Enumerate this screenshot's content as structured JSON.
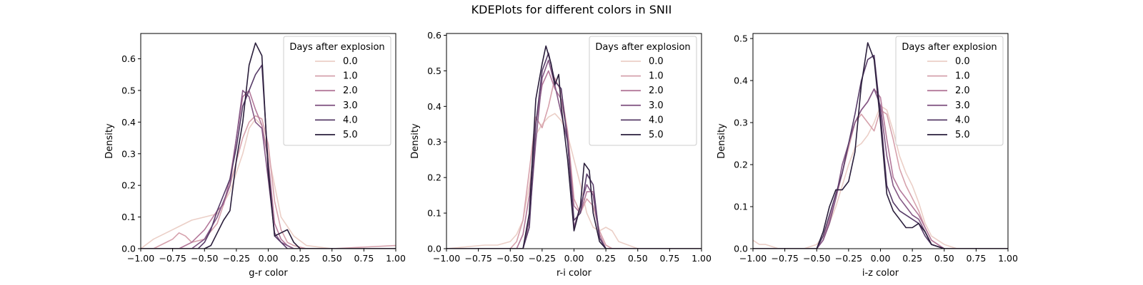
{
  "figure": {
    "title": "KDEPlots for different colors in SNII"
  },
  "palette": [
    "#ebcfc7",
    "#d6a1ac",
    "#b3789a",
    "#845885",
    "#573c68",
    "#2a1e3b"
  ],
  "chart_data": [
    {
      "type": "line",
      "xlabel": "g-r color",
      "ylabel": "Density",
      "xlim": [
        -1.0,
        1.0
      ],
      "ylim": [
        0,
        0.68
      ],
      "xticks": [
        -1.0,
        -0.75,
        -0.5,
        -0.25,
        0.0,
        0.25,
        0.5,
        0.75,
        1.0
      ],
      "xtick_labels": [
        "−1.00",
        "−0.75",
        "−0.50",
        "−0.25",
        "0.00",
        "0.25",
        "0.50",
        "0.75",
        "1.00"
      ],
      "yticks": [
        0.0,
        0.1,
        0.2,
        0.3,
        0.4,
        0.5,
        0.6
      ],
      "ytick_labels": [
        "0.0",
        "0.1",
        "0.2",
        "0.3",
        "0.4",
        "0.5",
        "0.6"
      ],
      "grid": false,
      "legend": {
        "title": "Days after explosion",
        "placement": "top-right"
      },
      "series": [
        {
          "name": "0.0",
          "x": [
            -1.0,
            -0.9,
            -0.8,
            -0.7,
            -0.6,
            -0.5,
            -0.4,
            -0.3,
            -0.2,
            -0.15,
            -0.1,
            -0.05,
            0.0,
            0.05,
            0.1,
            0.2,
            0.3,
            0.5,
            0.7,
            1.0
          ],
          "y": [
            0.0,
            0.03,
            0.05,
            0.07,
            0.09,
            0.1,
            0.11,
            0.18,
            0.3,
            0.38,
            0.41,
            0.39,
            0.3,
            0.2,
            0.1,
            0.04,
            0.01,
            0.0,
            0.0,
            0.0
          ]
        },
        {
          "name": "1.0",
          "x": [
            -1.0,
            -0.9,
            -0.8,
            -0.75,
            -0.7,
            -0.65,
            -0.6,
            -0.5,
            -0.4,
            -0.3,
            -0.2,
            -0.15,
            -0.1,
            -0.05,
            0.0,
            0.05,
            0.1,
            0.15,
            0.2,
            0.3,
            0.5,
            1.0
          ],
          "y": [
            0.0,
            0.0,
            0.02,
            0.03,
            0.05,
            0.04,
            0.02,
            0.03,
            0.08,
            0.2,
            0.35,
            0.4,
            0.42,
            0.41,
            0.33,
            0.15,
            0.06,
            0.02,
            0.01,
            0.0,
            0.0,
            0.01
          ]
        },
        {
          "name": "2.0",
          "x": [
            -1.0,
            -0.7,
            -0.6,
            -0.5,
            -0.4,
            -0.35,
            -0.3,
            -0.25,
            -0.2,
            -0.15,
            -0.1,
            -0.05,
            0.0,
            0.05,
            0.1,
            0.15,
            0.2,
            0.3,
            1.0
          ],
          "y": [
            0.0,
            0.0,
            0.02,
            0.06,
            0.12,
            0.14,
            0.22,
            0.35,
            0.48,
            0.5,
            0.44,
            0.39,
            0.28,
            0.08,
            0.03,
            0.01,
            0.0,
            0.0,
            0.0
          ]
        },
        {
          "name": "3.0",
          "x": [
            -1.0,
            -0.6,
            -0.5,
            -0.4,
            -0.35,
            -0.3,
            -0.25,
            -0.2,
            -0.15,
            -0.1,
            -0.05,
            0.0,
            0.05,
            0.1,
            0.15,
            0.2,
            1.0
          ],
          "y": [
            0.0,
            0.0,
            0.03,
            0.1,
            0.15,
            0.2,
            0.35,
            0.5,
            0.48,
            0.4,
            0.38,
            0.22,
            0.05,
            0.02,
            0.01,
            0.0,
            0.0
          ]
        },
        {
          "name": "4.0",
          "x": [
            -1.0,
            -0.55,
            -0.5,
            -0.45,
            -0.4,
            -0.35,
            -0.3,
            -0.25,
            -0.2,
            -0.15,
            -0.1,
            -0.05,
            0.0,
            0.05,
            0.1,
            0.15,
            1.0
          ],
          "y": [
            0.0,
            0.0,
            0.02,
            0.06,
            0.12,
            0.17,
            0.22,
            0.32,
            0.45,
            0.5,
            0.55,
            0.58,
            0.26,
            0.04,
            0.02,
            0.0,
            0.0
          ]
        },
        {
          "name": "5.0",
          "x": [
            -1.0,
            -0.5,
            -0.45,
            -0.4,
            -0.35,
            -0.3,
            -0.25,
            -0.2,
            -0.15,
            -0.1,
            -0.05,
            0.0,
            0.05,
            0.1,
            0.15,
            0.2,
            0.25,
            1.0
          ],
          "y": [
            0.0,
            0.0,
            0.01,
            0.05,
            0.09,
            0.12,
            0.28,
            0.4,
            0.58,
            0.65,
            0.61,
            0.24,
            0.04,
            0.05,
            0.06,
            0.02,
            0.0,
            0.0
          ]
        }
      ]
    },
    {
      "type": "line",
      "xlabel": "r-i color",
      "ylabel": "Density",
      "xlim": [
        -1.0,
        1.0
      ],
      "ylim": [
        0,
        0.605
      ],
      "xticks": [
        -1.0,
        -0.75,
        -0.5,
        -0.25,
        0.0,
        0.25,
        0.5,
        0.75,
        1.0
      ],
      "xtick_labels": [
        "−1.00",
        "−0.75",
        "−0.50",
        "−0.25",
        "0.00",
        "0.25",
        "0.50",
        "0.75",
        "1.00"
      ],
      "yticks": [
        0.0,
        0.1,
        0.2,
        0.3,
        0.4,
        0.5,
        0.6
      ],
      "ytick_labels": [
        "0.0",
        "0.1",
        "0.2",
        "0.3",
        "0.4",
        "0.5",
        "0.6"
      ],
      "grid": false,
      "legend": {
        "title": "Days after explosion",
        "placement": "top-right"
      },
      "series": [
        {
          "name": "0.0",
          "x": [
            -1.0,
            -0.7,
            -0.6,
            -0.5,
            -0.45,
            -0.4,
            -0.35,
            -0.3,
            -0.25,
            -0.2,
            -0.15,
            -0.1,
            -0.05,
            0.0,
            0.05,
            0.1,
            0.15,
            0.2,
            0.25,
            0.3,
            0.35,
            0.5,
            1.0
          ],
          "y": [
            0.0,
            0.01,
            0.01,
            0.02,
            0.04,
            0.08,
            0.18,
            0.32,
            0.35,
            0.37,
            0.38,
            0.36,
            0.32,
            0.25,
            0.18,
            0.1,
            0.06,
            0.05,
            0.06,
            0.05,
            0.02,
            0.0,
            0.0
          ]
        },
        {
          "name": "1.0",
          "x": [
            -1.0,
            -0.5,
            -0.45,
            -0.4,
            -0.35,
            -0.3,
            -0.25,
            -0.2,
            -0.15,
            -0.1,
            -0.05,
            0.0,
            0.05,
            0.1,
            0.15,
            0.2,
            0.25,
            0.3,
            1.0
          ],
          "y": [
            0.0,
            0.0,
            0.02,
            0.08,
            0.22,
            0.37,
            0.34,
            0.4,
            0.48,
            0.44,
            0.33,
            0.14,
            0.1,
            0.14,
            0.12,
            0.05,
            0.01,
            0.0,
            0.0
          ]
        },
        {
          "name": "2.0",
          "x": [
            -1.0,
            -0.45,
            -0.4,
            -0.35,
            -0.3,
            -0.25,
            -0.2,
            -0.15,
            -0.1,
            -0.05,
            0.0,
            0.05,
            0.1,
            0.15,
            0.2,
            0.25,
            1.0
          ],
          "y": [
            0.0,
            0.0,
            0.04,
            0.15,
            0.35,
            0.46,
            0.5,
            0.45,
            0.42,
            0.32,
            0.12,
            0.1,
            0.16,
            0.16,
            0.04,
            0.0,
            0.0
          ]
        },
        {
          "name": "3.0",
          "x": [
            -1.0,
            -0.4,
            -0.35,
            -0.3,
            -0.25,
            -0.2,
            -0.15,
            -0.1,
            -0.05,
            0.0,
            0.05,
            0.1,
            0.15,
            0.2,
            0.25,
            1.0
          ],
          "y": [
            0.0,
            0.0,
            0.08,
            0.3,
            0.48,
            0.53,
            0.46,
            0.38,
            0.3,
            0.06,
            0.12,
            0.18,
            0.15,
            0.03,
            0.0,
            0.0
          ]
        },
        {
          "name": "4.0",
          "x": [
            -1.0,
            -0.4,
            -0.35,
            -0.3,
            -0.25,
            -0.2,
            -0.15,
            -0.1,
            -0.05,
            0.0,
            0.05,
            0.1,
            0.15,
            0.2,
            0.25,
            1.0
          ],
          "y": [
            0.0,
            0.0,
            0.06,
            0.35,
            0.5,
            0.55,
            0.47,
            0.45,
            0.3,
            0.08,
            0.1,
            0.21,
            0.18,
            0.03,
            0.0,
            0.0
          ]
        },
        {
          "name": "5.0",
          "x": [
            -1.0,
            -0.4,
            -0.35,
            -0.3,
            -0.25,
            -0.22,
            -0.18,
            -0.15,
            -0.12,
            -0.1,
            -0.05,
            0.0,
            0.05,
            0.08,
            0.12,
            0.15,
            0.2,
            0.25,
            1.0
          ],
          "y": [
            0.0,
            0.0,
            0.1,
            0.42,
            0.52,
            0.57,
            0.52,
            0.46,
            0.49,
            0.4,
            0.25,
            0.05,
            0.12,
            0.24,
            0.22,
            0.1,
            0.02,
            0.0,
            0.0
          ]
        }
      ]
    },
    {
      "type": "line",
      "xlabel": "i-z color",
      "ylabel": "Density",
      "xlim": [
        -1.0,
        1.0
      ],
      "ylim": [
        0,
        0.512
      ],
      "xticks": [
        -1.0,
        -0.75,
        -0.5,
        -0.25,
        0.0,
        0.25,
        0.5,
        0.75,
        1.0
      ],
      "xtick_labels": [
        "−1.00",
        "−0.75",
        "−0.50",
        "−0.25",
        "0.00",
        "0.25",
        "0.50",
        "0.75",
        "1.00"
      ],
      "yticks": [
        0.0,
        0.1,
        0.2,
        0.3,
        0.4,
        0.5
      ],
      "ytick_labels": [
        "0.0",
        "0.1",
        "0.2",
        "0.3",
        "0.4",
        "0.5"
      ],
      "grid": false,
      "legend": {
        "title": "Days after explosion",
        "placement": "top-right"
      },
      "series": [
        {
          "name": "0.0",
          "x": [
            -1.0,
            -0.95,
            -0.9,
            -0.8,
            -0.7,
            -0.6,
            -0.5,
            -0.45,
            -0.4,
            -0.35,
            -0.3,
            -0.25,
            -0.2,
            -0.15,
            -0.1,
            -0.05,
            0.0,
            0.05,
            0.1,
            0.15,
            0.2,
            0.25,
            0.3,
            0.35,
            0.4,
            0.5,
            0.6,
            1.0
          ],
          "y": [
            0.02,
            0.01,
            0.01,
            0.0,
            0.0,
            0.0,
            0.01,
            0.03,
            0.06,
            0.1,
            0.15,
            0.2,
            0.24,
            0.25,
            0.27,
            0.3,
            0.34,
            0.33,
            0.28,
            0.22,
            0.18,
            0.15,
            0.11,
            0.06,
            0.03,
            0.01,
            0.0,
            0.0
          ]
        },
        {
          "name": "1.0",
          "x": [
            -1.0,
            -0.5,
            -0.45,
            -0.4,
            -0.35,
            -0.3,
            -0.25,
            -0.2,
            -0.15,
            -0.1,
            -0.05,
            0.0,
            0.05,
            0.1,
            0.15,
            0.2,
            0.25,
            0.3,
            0.35,
            0.4,
            0.5,
            1.0
          ],
          "y": [
            0.0,
            0.0,
            0.02,
            0.06,
            0.12,
            0.18,
            0.24,
            0.3,
            0.32,
            0.3,
            0.28,
            0.33,
            0.32,
            0.26,
            0.19,
            0.15,
            0.12,
            0.09,
            0.05,
            0.02,
            0.0,
            0.0
          ]
        },
        {
          "name": "2.0",
          "x": [
            -1.0,
            -0.5,
            -0.45,
            -0.4,
            -0.35,
            -0.3,
            -0.25,
            -0.2,
            -0.15,
            -0.1,
            -0.05,
            0.0,
            0.05,
            0.1,
            0.15,
            0.2,
            0.25,
            0.3,
            0.35,
            0.4,
            0.5,
            1.0
          ],
          "y": [
            0.0,
            0.0,
            0.02,
            0.07,
            0.12,
            0.18,
            0.25,
            0.3,
            0.33,
            0.35,
            0.38,
            0.36,
            0.26,
            0.17,
            0.14,
            0.12,
            0.1,
            0.08,
            0.05,
            0.02,
            0.0,
            0.0
          ]
        },
        {
          "name": "3.0",
          "x": [
            -1.0,
            -0.5,
            -0.45,
            -0.4,
            -0.35,
            -0.3,
            -0.25,
            -0.2,
            -0.15,
            -0.1,
            -0.05,
            0.0,
            0.05,
            0.1,
            0.15,
            0.2,
            0.25,
            0.3,
            0.35,
            0.4,
            0.5,
            1.0
          ],
          "y": [
            0.0,
            0.0,
            0.02,
            0.06,
            0.12,
            0.2,
            0.25,
            0.3,
            0.33,
            0.35,
            0.38,
            0.34,
            0.22,
            0.15,
            0.12,
            0.1,
            0.08,
            0.07,
            0.04,
            0.01,
            0.0,
            0.0
          ]
        },
        {
          "name": "4.0",
          "x": [
            -1.0,
            -0.5,
            -0.45,
            -0.4,
            -0.35,
            -0.3,
            -0.25,
            -0.2,
            -0.15,
            -0.1,
            -0.05,
            0.0,
            0.05,
            0.1,
            0.15,
            0.2,
            0.25,
            0.3,
            0.35,
            0.4,
            0.5,
            1.0
          ],
          "y": [
            0.0,
            0.0,
            0.03,
            0.08,
            0.13,
            0.18,
            0.25,
            0.32,
            0.4,
            0.45,
            0.46,
            0.32,
            0.15,
            0.11,
            0.09,
            0.08,
            0.07,
            0.06,
            0.03,
            0.01,
            0.0,
            0.0
          ]
        },
        {
          "name": "5.0",
          "x": [
            -1.0,
            -0.5,
            -0.45,
            -0.4,
            -0.35,
            -0.3,
            -0.25,
            -0.2,
            -0.15,
            -0.1,
            -0.05,
            0.0,
            0.05,
            0.1,
            0.15,
            0.2,
            0.25,
            0.3,
            0.35,
            0.4,
            0.5,
            1.0
          ],
          "y": [
            0.0,
            0.0,
            0.04,
            0.1,
            0.14,
            0.14,
            0.16,
            0.23,
            0.39,
            0.49,
            0.45,
            0.3,
            0.13,
            0.09,
            0.07,
            0.05,
            0.05,
            0.06,
            0.04,
            0.01,
            0.0,
            0.0
          ]
        }
      ]
    }
  ]
}
